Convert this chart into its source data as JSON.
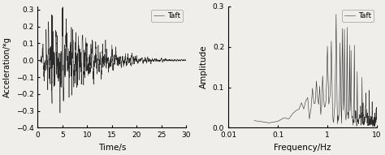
{
  "left_plot": {
    "xlabel": "Time/s",
    "ylabel": "Acceleration/*g",
    "xlim": [
      0,
      30
    ],
    "ylim": [
      -0.4,
      0.32
    ],
    "yticks": [
      -0.4,
      -0.3,
      -0.2,
      -0.1,
      0.0,
      0.1,
      0.2,
      0.3
    ],
    "xticks": [
      0,
      5,
      10,
      15,
      20,
      25,
      30
    ],
    "legend_label": "Taft",
    "line_color": "#2a2a2a",
    "line_width": 0.4
  },
  "right_plot": {
    "xlabel": "Frequency/Hz",
    "ylabel": "Amplitude",
    "xlim": [
      0.01,
      10
    ],
    "ylim": [
      0,
      0.3
    ],
    "yticks": [
      0.0,
      0.1,
      0.2,
      0.3
    ],
    "xticks": [
      0.01,
      0.1,
      1,
      10
    ],
    "xticklabels": [
      "0.01",
      "0.1",
      "1",
      "10"
    ],
    "legend_label": "Taft",
    "line_color": "#2a2a2a",
    "line_width": 0.4
  },
  "figure": {
    "bg_color": "#f0eeeb",
    "font_color": "#000000",
    "tick_fontsize": 6.5,
    "label_fontsize": 7.5
  }
}
